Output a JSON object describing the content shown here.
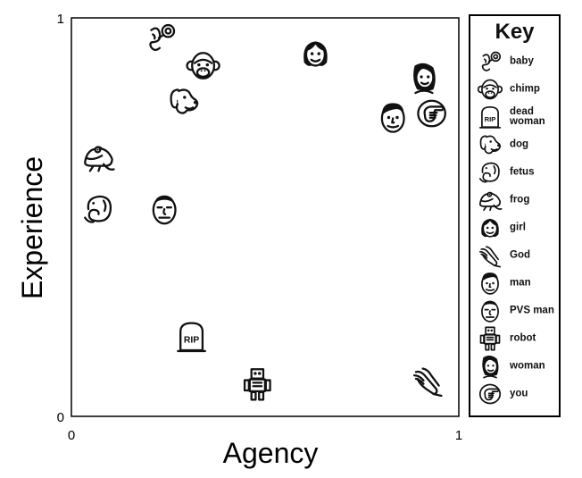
{
  "chart_data": {
    "type": "scatter",
    "title": "",
    "xlabel": "Agency",
    "ylabel": "Experience",
    "xlim": [
      0,
      1
    ],
    "ylim": [
      0,
      1
    ],
    "xticks": [
      "0",
      "1"
    ],
    "yticks": [
      "0",
      "1"
    ],
    "grid": false,
    "legend": {
      "title": "Key",
      "placement": "right"
    },
    "points": [
      {
        "name": "baby",
        "x": 0.23,
        "y": 0.95,
        "icon": "baby-icon"
      },
      {
        "name": "chimp",
        "x": 0.34,
        "y": 0.88,
        "icon": "chimp-icon"
      },
      {
        "name": "dog",
        "x": 0.29,
        "y": 0.79,
        "icon": "dog-icon"
      },
      {
        "name": "frog",
        "x": 0.07,
        "y": 0.65,
        "icon": "frog-icon"
      },
      {
        "name": "fetus",
        "x": 0.07,
        "y": 0.52,
        "icon": "fetus-icon"
      },
      {
        "name": "PVS man",
        "x": 0.24,
        "y": 0.52,
        "icon": "pvs-man-icon"
      },
      {
        "name": "girl",
        "x": 0.63,
        "y": 0.91,
        "icon": "girl-icon"
      },
      {
        "name": "woman",
        "x": 0.91,
        "y": 0.85,
        "icon": "woman-icon"
      },
      {
        "name": "man",
        "x": 0.83,
        "y": 0.75,
        "icon": "man-icon"
      },
      {
        "name": "you",
        "x": 0.93,
        "y": 0.76,
        "icon": "you-icon"
      },
      {
        "name": "dead woman",
        "x": 0.31,
        "y": 0.2,
        "icon": "tombstone-icon"
      },
      {
        "name": "robot",
        "x": 0.48,
        "y": 0.08,
        "icon": "robot-icon"
      },
      {
        "name": "God",
        "x": 0.92,
        "y": 0.09,
        "icon": "praying-hands-icon"
      }
    ]
  },
  "legend_items": [
    {
      "label": "baby",
      "icon": "baby-icon"
    },
    {
      "label": "chimp",
      "icon": "chimp-icon"
    },
    {
      "label": "dead woman",
      "icon": "tombstone-icon"
    },
    {
      "label": "dog",
      "icon": "dog-icon"
    },
    {
      "label": "fetus",
      "icon": "fetus-icon"
    },
    {
      "label": "frog",
      "icon": "frog-icon"
    },
    {
      "label": "girl",
      "icon": "girl-icon"
    },
    {
      "label": "God",
      "icon": "praying-hands-icon"
    },
    {
      "label": "man",
      "icon": "man-icon"
    },
    {
      "label": "PVS man",
      "icon": "pvs-man-icon"
    },
    {
      "label": "robot",
      "icon": "robot-icon"
    },
    {
      "label": "woman",
      "icon": "woman-icon"
    },
    {
      "label": "you",
      "icon": "you-icon"
    }
  ],
  "tombstone_text": "RIP"
}
